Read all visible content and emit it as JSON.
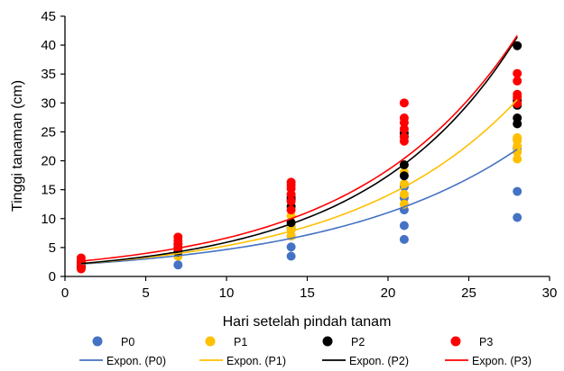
{
  "chart_data": {
    "type": "scatter",
    "title": "",
    "xlabel": "Hari setelah pindah tanam",
    "ylabel": "Tinggi tanaman (cm)",
    "xlim": [
      0,
      30
    ],
    "ylim": [
      0,
      45
    ],
    "xticks": [
      0,
      5,
      10,
      15,
      20,
      25,
      30
    ],
    "yticks": [
      0,
      5,
      10,
      15,
      20,
      25,
      30,
      35,
      40,
      45
    ],
    "grid": false,
    "legend_position": "bottom",
    "series": [
      {
        "name": "P0",
        "color": "#4472C4",
        "points": [
          [
            1,
            1.5
          ],
          [
            1,
            2.0
          ],
          [
            1,
            2.3
          ],
          [
            7,
            2.0
          ],
          [
            7,
            3.5
          ],
          [
            7,
            4.3
          ],
          [
            14,
            3.5
          ],
          [
            14,
            5.1
          ],
          [
            14,
            7.0
          ],
          [
            14,
            8.4
          ],
          [
            21,
            6.4
          ],
          [
            21,
            8.8
          ],
          [
            21,
            11.5
          ],
          [
            21,
            13.6
          ],
          [
            21,
            15.5
          ],
          [
            28,
            10.2
          ],
          [
            28,
            14.7
          ],
          [
            28,
            22.2
          ],
          [
            28,
            23.8
          ]
        ],
        "trend": {
          "name": "Expon. (P0)",
          "a": 1.968,
          "b": 0.0862
        }
      },
      {
        "name": "P1",
        "color": "#FFC000",
        "points": [
          [
            1,
            1.8
          ],
          [
            1,
            2.2
          ],
          [
            1,
            2.6
          ],
          [
            7,
            3.5
          ],
          [
            7,
            4.2
          ],
          [
            7,
            4.8
          ],
          [
            14,
            7.0
          ],
          [
            14,
            8.0
          ],
          [
            14,
            8.8
          ],
          [
            14,
            10.5
          ],
          [
            21,
            12.5
          ],
          [
            21,
            14.2
          ],
          [
            21,
            16.0
          ],
          [
            21,
            18.0
          ],
          [
            28,
            20.3
          ],
          [
            28,
            21.5
          ],
          [
            28,
            22.5
          ],
          [
            28,
            23.5
          ],
          [
            28,
            24.0
          ]
        ],
        "trend": {
          "name": "Expon. (P1)",
          "a": 2.01,
          "b": 0.0972
        }
      },
      {
        "name": "P2",
        "color": "#000000",
        "points": [
          [
            1,
            1.6
          ],
          [
            1,
            2.1
          ],
          [
            1,
            2.5
          ],
          [
            7,
            4.2
          ],
          [
            7,
            5.0
          ],
          [
            7,
            5.6
          ],
          [
            14,
            9.3
          ],
          [
            14,
            12.1
          ],
          [
            14,
            13.3
          ],
          [
            14,
            13.7
          ],
          [
            21,
            17.4
          ],
          [
            21,
            19.3
          ],
          [
            21,
            24.2
          ],
          [
            21,
            24.8
          ],
          [
            28,
            26.4
          ],
          [
            28,
            27.4
          ],
          [
            28,
            29.6
          ],
          [
            28,
            30.4
          ],
          [
            28,
            39.9
          ]
        ],
        "trend": {
          "name": "Expon. (P2)",
          "a": 1.996,
          "b": 0.1083
        }
      },
      {
        "name": "P3",
        "color": "#FF0000",
        "points": [
          [
            1,
            1.3
          ],
          [
            1,
            2.0
          ],
          [
            1,
            2.6
          ],
          [
            1,
            3.2
          ],
          [
            7,
            4.9
          ],
          [
            7,
            5.6
          ],
          [
            7,
            6.2
          ],
          [
            7,
            6.8
          ],
          [
            14,
            11.5
          ],
          [
            14,
            13.0
          ],
          [
            14,
            14.2
          ],
          [
            14,
            15.2
          ],
          [
            14,
            15.8
          ],
          [
            14,
            16.3
          ],
          [
            21,
            23.4
          ],
          [
            21,
            24.1
          ],
          [
            21,
            25.5
          ],
          [
            21,
            26.6
          ],
          [
            21,
            27.4
          ],
          [
            21,
            30.0
          ],
          [
            28,
            29.9
          ],
          [
            28,
            31.0
          ],
          [
            28,
            31.5
          ],
          [
            28,
            33.8
          ],
          [
            28,
            35.1
          ]
        ],
        "trend": {
          "name": "Expon. (P3)",
          "a": 2.396,
          "b": 0.102
        }
      }
    ]
  }
}
